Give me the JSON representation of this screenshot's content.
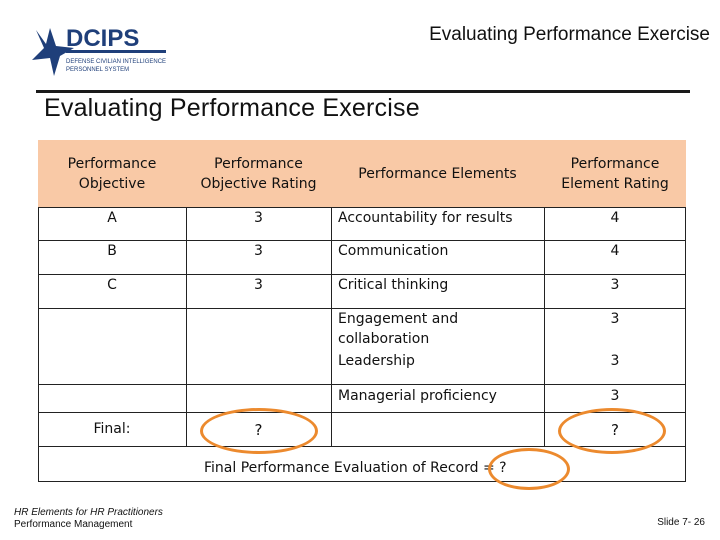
{
  "header": {
    "logo_text": "DCIPS",
    "logo_subtext_1": "DEFENSE CIVILIAN INTELLIGENCE",
    "logo_subtext_2": "PERSONNEL SYSTEM",
    "title": "Evaluating Performance Exercise"
  },
  "slide": {
    "title": "Evaluating Performance Exercise"
  },
  "table": {
    "headers": {
      "objective": "Performance Objective",
      "objective_rating": "Performance Objective Rating",
      "elements": "Performance Elements",
      "element_rating": "Performance Element Rating"
    },
    "rows": [
      {
        "objective": "A",
        "objective_rating": "3",
        "element": "Accountability for results",
        "element_rating": "4"
      },
      {
        "objective": "B",
        "objective_rating": "3",
        "element": "Communication",
        "element_rating": "4"
      },
      {
        "objective": "C",
        "objective_rating": "3",
        "element": "Critical thinking",
        "element_rating": "3"
      }
    ],
    "extra_elements": [
      {
        "element": "Engagement and collaboration",
        "element_rating": "3"
      },
      {
        "element": "Leadership",
        "element_rating": "3"
      },
      {
        "element": "Managerial proficiency",
        "element_rating": "3"
      }
    ],
    "final": {
      "label": "Final:",
      "objective_rating": "?",
      "element_rating": "?"
    }
  },
  "record": {
    "text": "Final Performance Evaluation of Record = ?"
  },
  "footer": {
    "line1": "HR Elements for HR Practitioners",
    "line2": "Performance Management",
    "slide_number": "Slide 7- 26"
  },
  "colors": {
    "header_fill": "#f9c9a6",
    "highlight_oval": "#ec8a2e",
    "logo_blue": "#1f3f7a"
  }
}
